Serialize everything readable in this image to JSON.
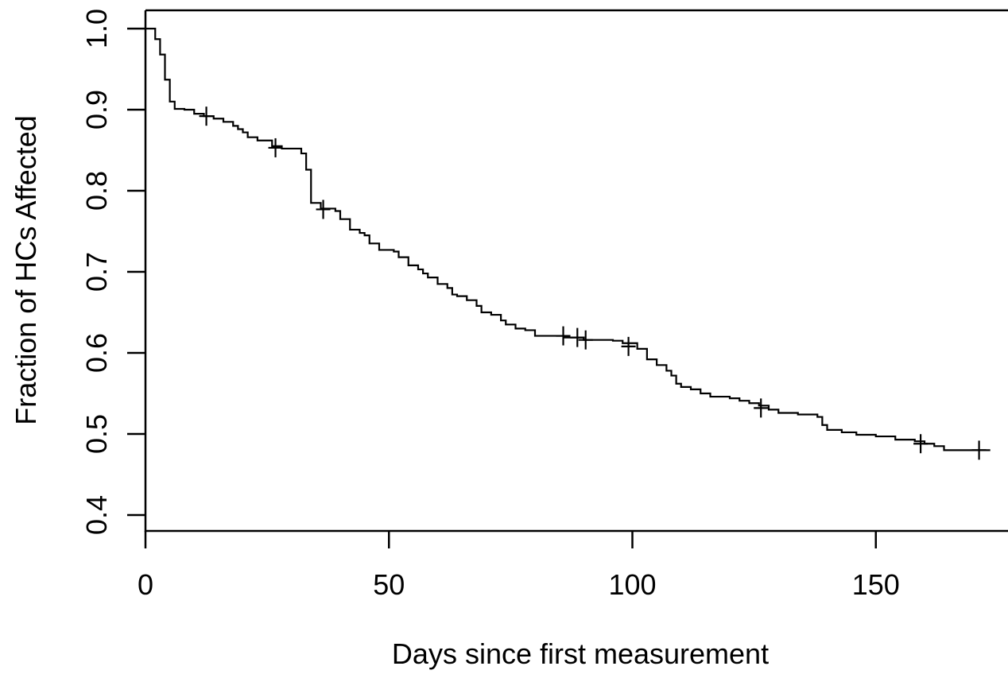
{
  "chart_data": {
    "type": "line",
    "title": "",
    "xlabel": "Days since first measurement",
    "ylabel": "Fraction of HCs Affected",
    "xlim": [
      0,
      177
    ],
    "ylim": [
      0.38,
      1.02
    ],
    "x_ticks": [
      0,
      50,
      100,
      150
    ],
    "y_ticks": [
      0.4,
      0.5,
      0.6,
      0.7,
      0.8,
      0.9,
      1.0
    ],
    "x_tick_labels": [
      "0",
      "50",
      "100",
      "150"
    ],
    "y_tick_labels": [
      "0.4",
      "0.5",
      "0.6",
      "0.7",
      "0.8",
      "0.9",
      "1.0"
    ],
    "grid": false,
    "legend": "none",
    "series": [
      {
        "step": "post",
        "x": [
          0,
          2,
          3,
          4,
          5,
          6,
          8,
          10,
          12,
          14,
          16,
          18,
          19,
          20,
          21,
          23,
          26,
          28,
          31,
          32,
          33,
          34,
          36,
          38,
          39,
          40,
          42,
          44,
          45,
          46,
          48,
          51,
          52,
          54,
          56,
          57,
          58,
          60,
          62,
          63,
          64,
          66,
          68,
          69,
          71,
          73,
          74,
          76,
          78,
          80,
          86,
          90,
          96,
          98,
          101,
          103,
          105,
          107,
          108,
          109,
          110,
          112,
          114,
          116,
          120,
          122,
          124,
          126,
          128,
          130,
          134,
          138,
          139,
          140,
          143,
          146,
          150,
          154,
          158,
          160,
          162,
          164,
          172
        ],
        "y": [
          1.0,
          0.987,
          0.968,
          0.937,
          0.91,
          0.901,
          0.9,
          0.895,
          0.892,
          0.889,
          0.885,
          0.88,
          0.876,
          0.872,
          0.866,
          0.862,
          0.855,
          0.852,
          0.852,
          0.846,
          0.826,
          0.785,
          0.778,
          0.778,
          0.775,
          0.765,
          0.752,
          0.748,
          0.745,
          0.735,
          0.727,
          0.725,
          0.718,
          0.708,
          0.703,
          0.698,
          0.693,
          0.685,
          0.68,
          0.672,
          0.67,
          0.665,
          0.658,
          0.65,
          0.647,
          0.64,
          0.635,
          0.63,
          0.628,
          0.621,
          0.619,
          0.616,
          0.615,
          0.612,
          0.605,
          0.592,
          0.585,
          0.578,
          0.572,
          0.562,
          0.558,
          0.555,
          0.55,
          0.546,
          0.544,
          0.541,
          0.538,
          0.535,
          0.53,
          0.526,
          0.524,
          0.521,
          0.511,
          0.505,
          0.502,
          0.499,
          0.497,
          0.493,
          0.491,
          0.488,
          0.485,
          0.48,
          0.48
        ],
        "censored_x": [
          12.5,
          26.7,
          36.5,
          85.8,
          88.7,
          90.4,
          99.2,
          126.4,
          159.2,
          171.2
        ],
        "censored_y": [
          0.892,
          0.853,
          0.777,
          0.621,
          0.619,
          0.616,
          0.608,
          0.532,
          0.488,
          0.48
        ]
      }
    ]
  }
}
